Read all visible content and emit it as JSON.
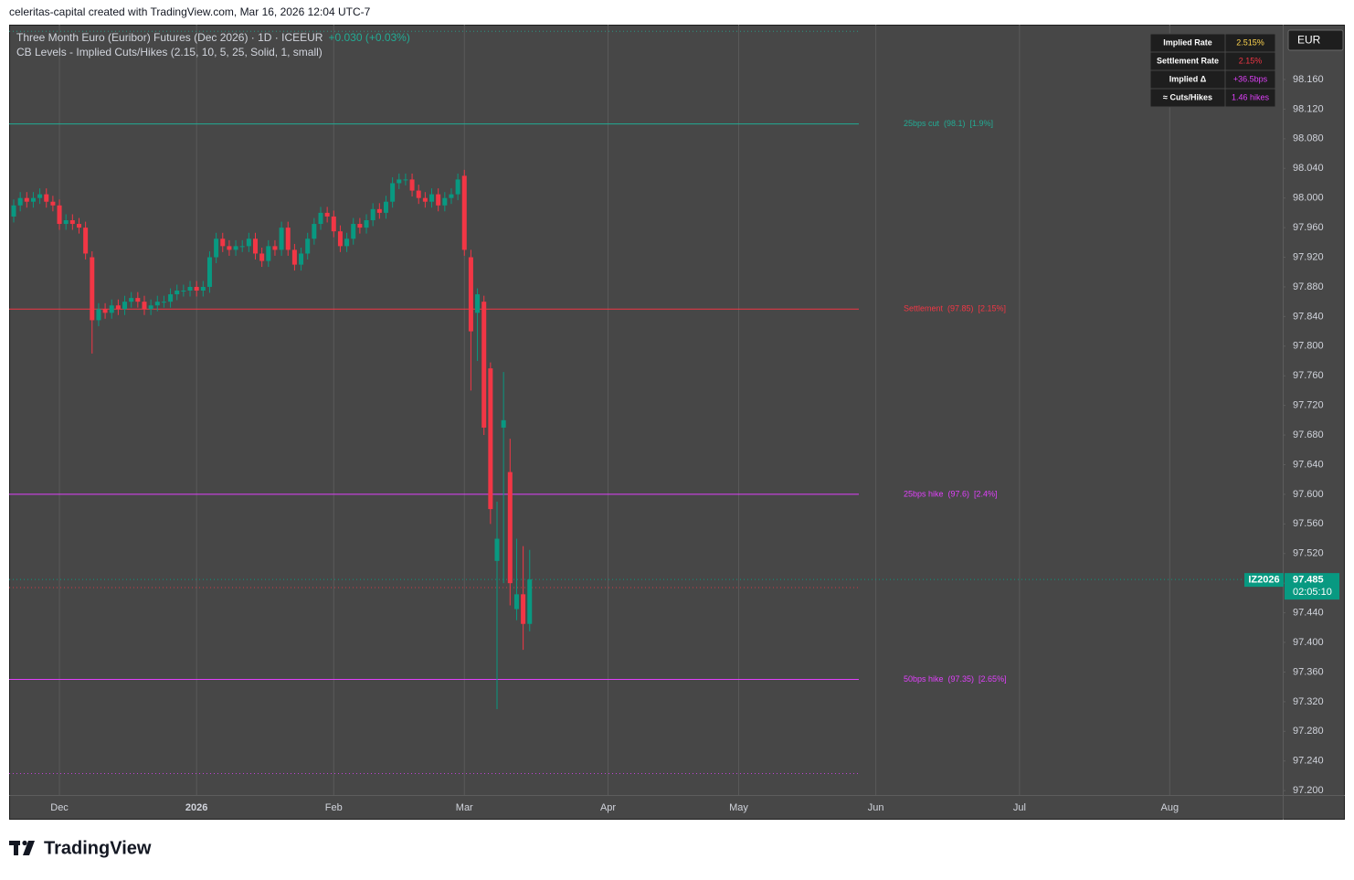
{
  "header": {
    "attribution": "celeritas-capital created with TradingView.com, Mar 16, 2026 12:04 UTC-7"
  },
  "chart_data": {
    "type": "candlestick",
    "title": "Three Month Euro (Euribor) Futures (Dec 2026) · 1D · ICEEUR",
    "change": "+0.030 (+0.03%)",
    "indicator": "CB Levels - Implied Cuts/Hikes (2.15, 10, 5, 25, Solid, 1, small)",
    "up_color": "#089981",
    "down_color": "#f23645",
    "open": [
      97.975,
      97.99,
      98.0,
      97.995,
      98.0,
      98.005,
      97.995,
      97.99,
      97.965,
      97.97,
      97.965,
      97.96,
      97.92,
      97.835,
      97.85,
      97.845,
      97.855,
      97.85,
      97.86,
      97.865,
      97.86,
      97.85,
      97.855,
      97.86,
      97.86,
      97.87,
      97.875,
      97.875,
      97.88,
      97.875,
      97.88,
      97.92,
      97.945,
      97.935,
      97.93,
      97.935,
      97.935,
      97.945,
      97.925,
      97.915,
      97.935,
      97.93,
      97.96,
      97.93,
      97.91,
      97.925,
      97.945,
      97.965,
      97.98,
      97.975,
      97.955,
      97.935,
      97.945,
      97.965,
      97.96,
      97.97,
      97.985,
      97.98,
      97.995,
      98.02,
      98.025,
      98.025,
      98.01,
      98.0,
      97.995,
      98.005,
      97.99,
      98.0,
      98.005,
      98.03,
      97.92,
      97.845,
      97.86,
      97.77,
      97.51,
      97.69,
      97.63,
      97.445,
      97.465,
      97.425
    ],
    "high": [
      97.998,
      98.008,
      98.008,
      98.008,
      98.013,
      98.013,
      98.003,
      97.998,
      97.978,
      97.978,
      97.973,
      97.968,
      97.928,
      97.858,
      97.858,
      97.863,
      97.863,
      97.868,
      97.873,
      97.873,
      97.868,
      97.863,
      97.868,
      97.868,
      97.878,
      97.883,
      97.883,
      97.888,
      97.888,
      97.888,
      97.928,
      97.953,
      97.953,
      97.943,
      97.943,
      97.943,
      97.953,
      97.953,
      97.933,
      97.943,
      97.943,
      97.968,
      97.968,
      97.938,
      97.933,
      97.953,
      97.973,
      97.988,
      97.988,
      97.983,
      97.963,
      97.953,
      97.973,
      97.973,
      97.978,
      97.993,
      97.993,
      98.003,
      98.028,
      98.033,
      98.033,
      98.033,
      98.018,
      98.008,
      98.013,
      98.013,
      98.008,
      98.013,
      98.033,
      98.038,
      97.93,
      97.878,
      97.868,
      97.778,
      97.59,
      97.765,
      97.675,
      97.54,
      97.53,
      97.525
    ],
    "low": [
      97.967,
      97.982,
      97.987,
      97.987,
      97.992,
      97.987,
      97.982,
      97.957,
      97.957,
      97.957,
      97.952,
      97.917,
      97.79,
      97.827,
      97.837,
      97.837,
      97.842,
      97.842,
      97.852,
      97.852,
      97.842,
      97.842,
      97.847,
      97.852,
      97.852,
      97.862,
      97.867,
      97.867,
      97.867,
      97.867,
      97.872,
      97.912,
      97.927,
      97.922,
      97.922,
      97.927,
      97.927,
      97.917,
      97.907,
      97.907,
      97.922,
      97.922,
      97.922,
      97.902,
      97.902,
      97.917,
      97.937,
      97.957,
      97.967,
      97.947,
      97.927,
      97.927,
      97.937,
      97.952,
      97.952,
      97.962,
      97.972,
      97.972,
      97.987,
      98.012,
      98.017,
      98.002,
      97.992,
      97.987,
      97.987,
      97.982,
      97.982,
      97.992,
      97.997,
      97.922,
      97.74,
      97.78,
      97.68,
      97.56,
      97.31,
      97.48,
      97.45,
      97.43,
      97.39,
      97.415
    ],
    "close": [
      97.99,
      98.0,
      97.995,
      98.0,
      98.005,
      97.995,
      97.99,
      97.965,
      97.97,
      97.965,
      97.96,
      97.925,
      97.835,
      97.85,
      97.845,
      97.855,
      97.85,
      97.86,
      97.865,
      97.86,
      97.85,
      97.855,
      97.86,
      97.86,
      97.87,
      97.875,
      97.875,
      97.88,
      97.875,
      97.88,
      97.92,
      97.945,
      97.935,
      97.93,
      97.935,
      97.935,
      97.945,
      97.925,
      97.915,
      97.935,
      97.93,
      97.96,
      97.93,
      97.91,
      97.925,
      97.945,
      97.965,
      97.98,
      97.975,
      97.955,
      97.935,
      97.945,
      97.965,
      97.96,
      97.97,
      97.985,
      97.98,
      97.995,
      98.02,
      98.025,
      98.025,
      98.01,
      98.0,
      97.995,
      98.005,
      97.99,
      98.0,
      98.005,
      98.025,
      97.93,
      97.82,
      97.87,
      97.69,
      97.58,
      97.54,
      97.7,
      97.48,
      97.465,
      97.425,
      97.485
    ],
    "xlim": [
      -0.7,
      194.3
    ],
    "xticks": [
      {
        "value": 7,
        "label": "Dec"
      },
      {
        "value": 28,
        "label": "2026",
        "emphasis": true
      },
      {
        "value": 49,
        "label": "Feb"
      },
      {
        "value": 69,
        "label": "Mar"
      },
      {
        "value": 91,
        "label": "Apr"
      },
      {
        "value": 111,
        "label": "May"
      },
      {
        "value": 132,
        "label": "Jun"
      },
      {
        "value": 154,
        "label": "Jul"
      },
      {
        "value": 177,
        "label": "Aug"
      }
    ],
    "ylim": [
      97.194,
      98.234
    ],
    "yticks": [
      {
        "value": 97.2,
        "label": "97.200"
      },
      {
        "value": 97.24,
        "label": "97.240"
      },
      {
        "value": 97.28,
        "label": "97.280"
      },
      {
        "value": 97.32,
        "label": "97.320"
      },
      {
        "value": 97.36,
        "label": "97.360"
      },
      {
        "value": 97.4,
        "label": "97.400"
      },
      {
        "value": 97.44,
        "label": "97.440"
      },
      {
        "value": 97.48,
        "label": "97.480"
      },
      {
        "value": 97.52,
        "label": "97.520"
      },
      {
        "value": 97.56,
        "label": "97.560"
      },
      {
        "value": 97.6,
        "label": "97.600"
      },
      {
        "value": 97.64,
        "label": "97.640"
      },
      {
        "value": 97.68,
        "label": "97.680"
      },
      {
        "value": 97.72,
        "label": "97.720"
      },
      {
        "value": 97.76,
        "label": "97.760"
      },
      {
        "value": 97.8,
        "label": "97.800"
      },
      {
        "value": 97.84,
        "label": "97.840"
      },
      {
        "value": 97.88,
        "label": "97.880"
      },
      {
        "value": 97.92,
        "label": "97.920"
      },
      {
        "value": 97.96,
        "label": "97.960"
      },
      {
        "value": 98.0,
        "label": "98.000"
      },
      {
        "value": 98.04,
        "label": "98.040"
      },
      {
        "value": 98.08,
        "label": "98.080"
      },
      {
        "value": 98.12,
        "label": "98.120"
      },
      {
        "value": 98.16,
        "label": "98.160"
      }
    ],
    "grid": {
      "vertical": true,
      "horizontal": false
    },
    "levels": [
      {
        "value": 98.1,
        "label": "25bps cut  (98.1)  [1.9%]",
        "color": "#22ab94"
      },
      {
        "value": 97.85,
        "label": "Settlement  (97.85)  [2.15%]",
        "color": "#f23645"
      },
      {
        "value": 97.6,
        "label": "25bps hike  (97.6)  [2.4%]",
        "color": "#e040fb"
      },
      {
        "value": 97.35,
        "label": "50bps hike  (97.35)  [2.65%]",
        "color": "#e040fb"
      }
    ],
    "dotted_levels": [
      {
        "value": 98.225,
        "color": "#22ab94"
      },
      {
        "value": 97.474,
        "color": "#f23645"
      },
      {
        "value": 97.223,
        "color": "#e040fb"
      }
    ],
    "symbol": "IZ2026",
    "countdown": "02:05:10",
    "currency": "EUR",
    "info_table": {
      "rows": [
        {
          "label": "Implied Rate",
          "value": "2.515%",
          "color": "#ffd54f"
        },
        {
          "label": "Settlement Rate",
          "value": "2.15%",
          "color": "#f23645"
        },
        {
          "label": "Implied Δ",
          "value": "+36.5bps",
          "color": "#e040fb"
        },
        {
          "label": "≈ Cuts/Hikes",
          "value": "1.46 hikes",
          "color": "#e040fb"
        }
      ]
    }
  },
  "footer": {
    "brand": "TradingView"
  }
}
